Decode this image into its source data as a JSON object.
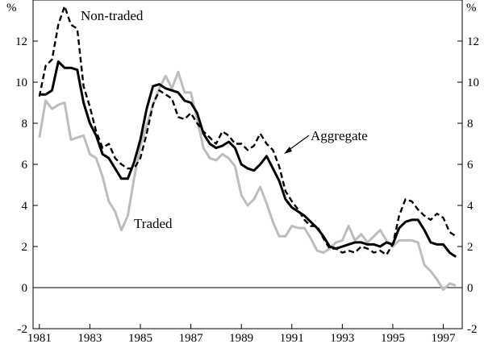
{
  "chart_data": {
    "type": "line",
    "title": "",
    "xlabel": "",
    "ylabel": "%",
    "ylabel_right": "%",
    "xlim": [
      1980.75,
      1997.75
    ],
    "ylim": [
      -2,
      14
    ],
    "x_ticks": [
      1981,
      1983,
      1985,
      1987,
      1989,
      1991,
      1993,
      1995,
      1997
    ],
    "x_tick_labels": [
      "1981",
      "1983",
      "1985",
      "1987",
      "1989",
      "1991",
      "1993",
      "1995",
      "1997"
    ],
    "y_ticks": [
      -2,
      0,
      2,
      4,
      6,
      8,
      10,
      12
    ],
    "y_tick_labels": [
      "-2",
      "0",
      "2",
      "4",
      "6",
      "8",
      "10",
      "12"
    ],
    "x": [
      1981.0,
      1981.25,
      1981.5,
      1981.75,
      1982.0,
      1982.25,
      1982.5,
      1982.75,
      1983.0,
      1983.25,
      1983.5,
      1983.75,
      1984.0,
      1984.25,
      1984.5,
      1984.75,
      1985.0,
      1985.25,
      1985.5,
      1985.75,
      1986.0,
      1986.25,
      1986.5,
      1986.75,
      1987.0,
      1987.25,
      1987.5,
      1987.75,
      1988.0,
      1988.25,
      1988.5,
      1988.75,
      1989.0,
      1989.25,
      1989.5,
      1989.75,
      1990.0,
      1990.25,
      1990.5,
      1990.75,
      1991.0,
      1991.25,
      1991.5,
      1991.75,
      1992.0,
      1992.25,
      1992.5,
      1992.75,
      1993.0,
      1993.25,
      1993.5,
      1993.75,
      1994.0,
      1994.25,
      1994.5,
      1994.75,
      1995.0,
      1995.25,
      1995.5,
      1995.75,
      1996.0,
      1996.25,
      1996.5,
      1996.75,
      1997.0,
      1997.25,
      1997.5
    ],
    "series": [
      {
        "name": "Non-traded",
        "style": "dashed",
        "color": "#000000",
        "values": [
          9.3,
          10.8,
          11.1,
          12.8,
          13.7,
          12.8,
          12.6,
          9.8,
          8.8,
          7.6,
          6.8,
          7.0,
          6.3,
          6.0,
          5.8,
          5.8,
          6.3,
          7.5,
          8.9,
          9.6,
          9.4,
          9.2,
          8.3,
          8.2,
          8.5,
          8.0,
          7.6,
          7.3,
          7.0,
          7.6,
          7.4,
          7.0,
          7.0,
          6.7,
          6.9,
          7.5,
          7.0,
          6.7,
          5.9,
          4.7,
          4.2,
          3.8,
          3.3,
          3.0,
          3.0,
          2.4,
          1.9,
          1.9,
          1.7,
          1.8,
          1.7,
          2.0,
          1.9,
          1.7,
          1.8,
          1.6,
          2.1,
          3.5,
          4.3,
          4.2,
          3.8,
          3.5,
          3.3,
          3.6,
          3.4,
          2.7,
          2.5
        ]
      },
      {
        "name": "Aggregate",
        "style": "solid-thick",
        "color": "#000000",
        "values": [
          9.4,
          9.4,
          9.6,
          11.0,
          10.7,
          10.7,
          10.6,
          9.0,
          8.0,
          7.4,
          6.5,
          6.3,
          5.8,
          5.3,
          5.3,
          6.1,
          7.2,
          8.7,
          9.8,
          9.9,
          9.7,
          9.6,
          9.5,
          9.1,
          9.0,
          8.5,
          7.5,
          7.0,
          6.8,
          6.9,
          7.1,
          6.8,
          6.0,
          5.8,
          5.7,
          6.0,
          6.4,
          5.8,
          5.2,
          4.3,
          3.9,
          3.7,
          3.5,
          3.2,
          2.9,
          2.5,
          2.0,
          1.9,
          2.0,
          2.1,
          2.2,
          2.2,
          2.1,
          2.1,
          2.0,
          2.2,
          2.1,
          2.9,
          3.2,
          3.3,
          3.3,
          2.8,
          2.2,
          2.1,
          2.1,
          1.7,
          1.5
        ]
      },
      {
        "name": "Traded",
        "style": "solid-grey",
        "color": "#bdbdbd",
        "values": [
          7.3,
          9.1,
          8.7,
          8.9,
          9.0,
          7.2,
          7.3,
          7.4,
          6.5,
          6.3,
          5.4,
          4.2,
          3.7,
          2.8,
          3.5,
          5.3,
          6.9,
          7.9,
          8.9,
          9.7,
          10.3,
          9.7,
          10.5,
          9.5,
          9.5,
          8.2,
          6.8,
          6.3,
          6.2,
          6.5,
          6.3,
          5.9,
          4.5,
          4.0,
          4.3,
          4.9,
          4.1,
          3.2,
          2.5,
          2.5,
          3.0,
          2.9,
          2.9,
          2.4,
          1.8,
          1.7,
          1.9,
          2.2,
          2.3,
          3.0,
          2.3,
          2.6,
          2.2,
          2.5,
          2.8,
          2.3,
          2.0,
          2.3,
          2.3,
          2.3,
          2.2,
          1.1,
          0.8,
          0.4,
          -0.1,
          0.2,
          0.1
        ]
      }
    ],
    "annotations": [
      {
        "text": "Non-traded",
        "target_series": "Non-traded"
      },
      {
        "text": "Aggregate",
        "target_series": "Aggregate",
        "arrow_to_x": 1990.4,
        "arrow_to_y": 6.8
      },
      {
        "text": "Traded",
        "target_series": "Traded"
      }
    ],
    "zero_line": true
  }
}
